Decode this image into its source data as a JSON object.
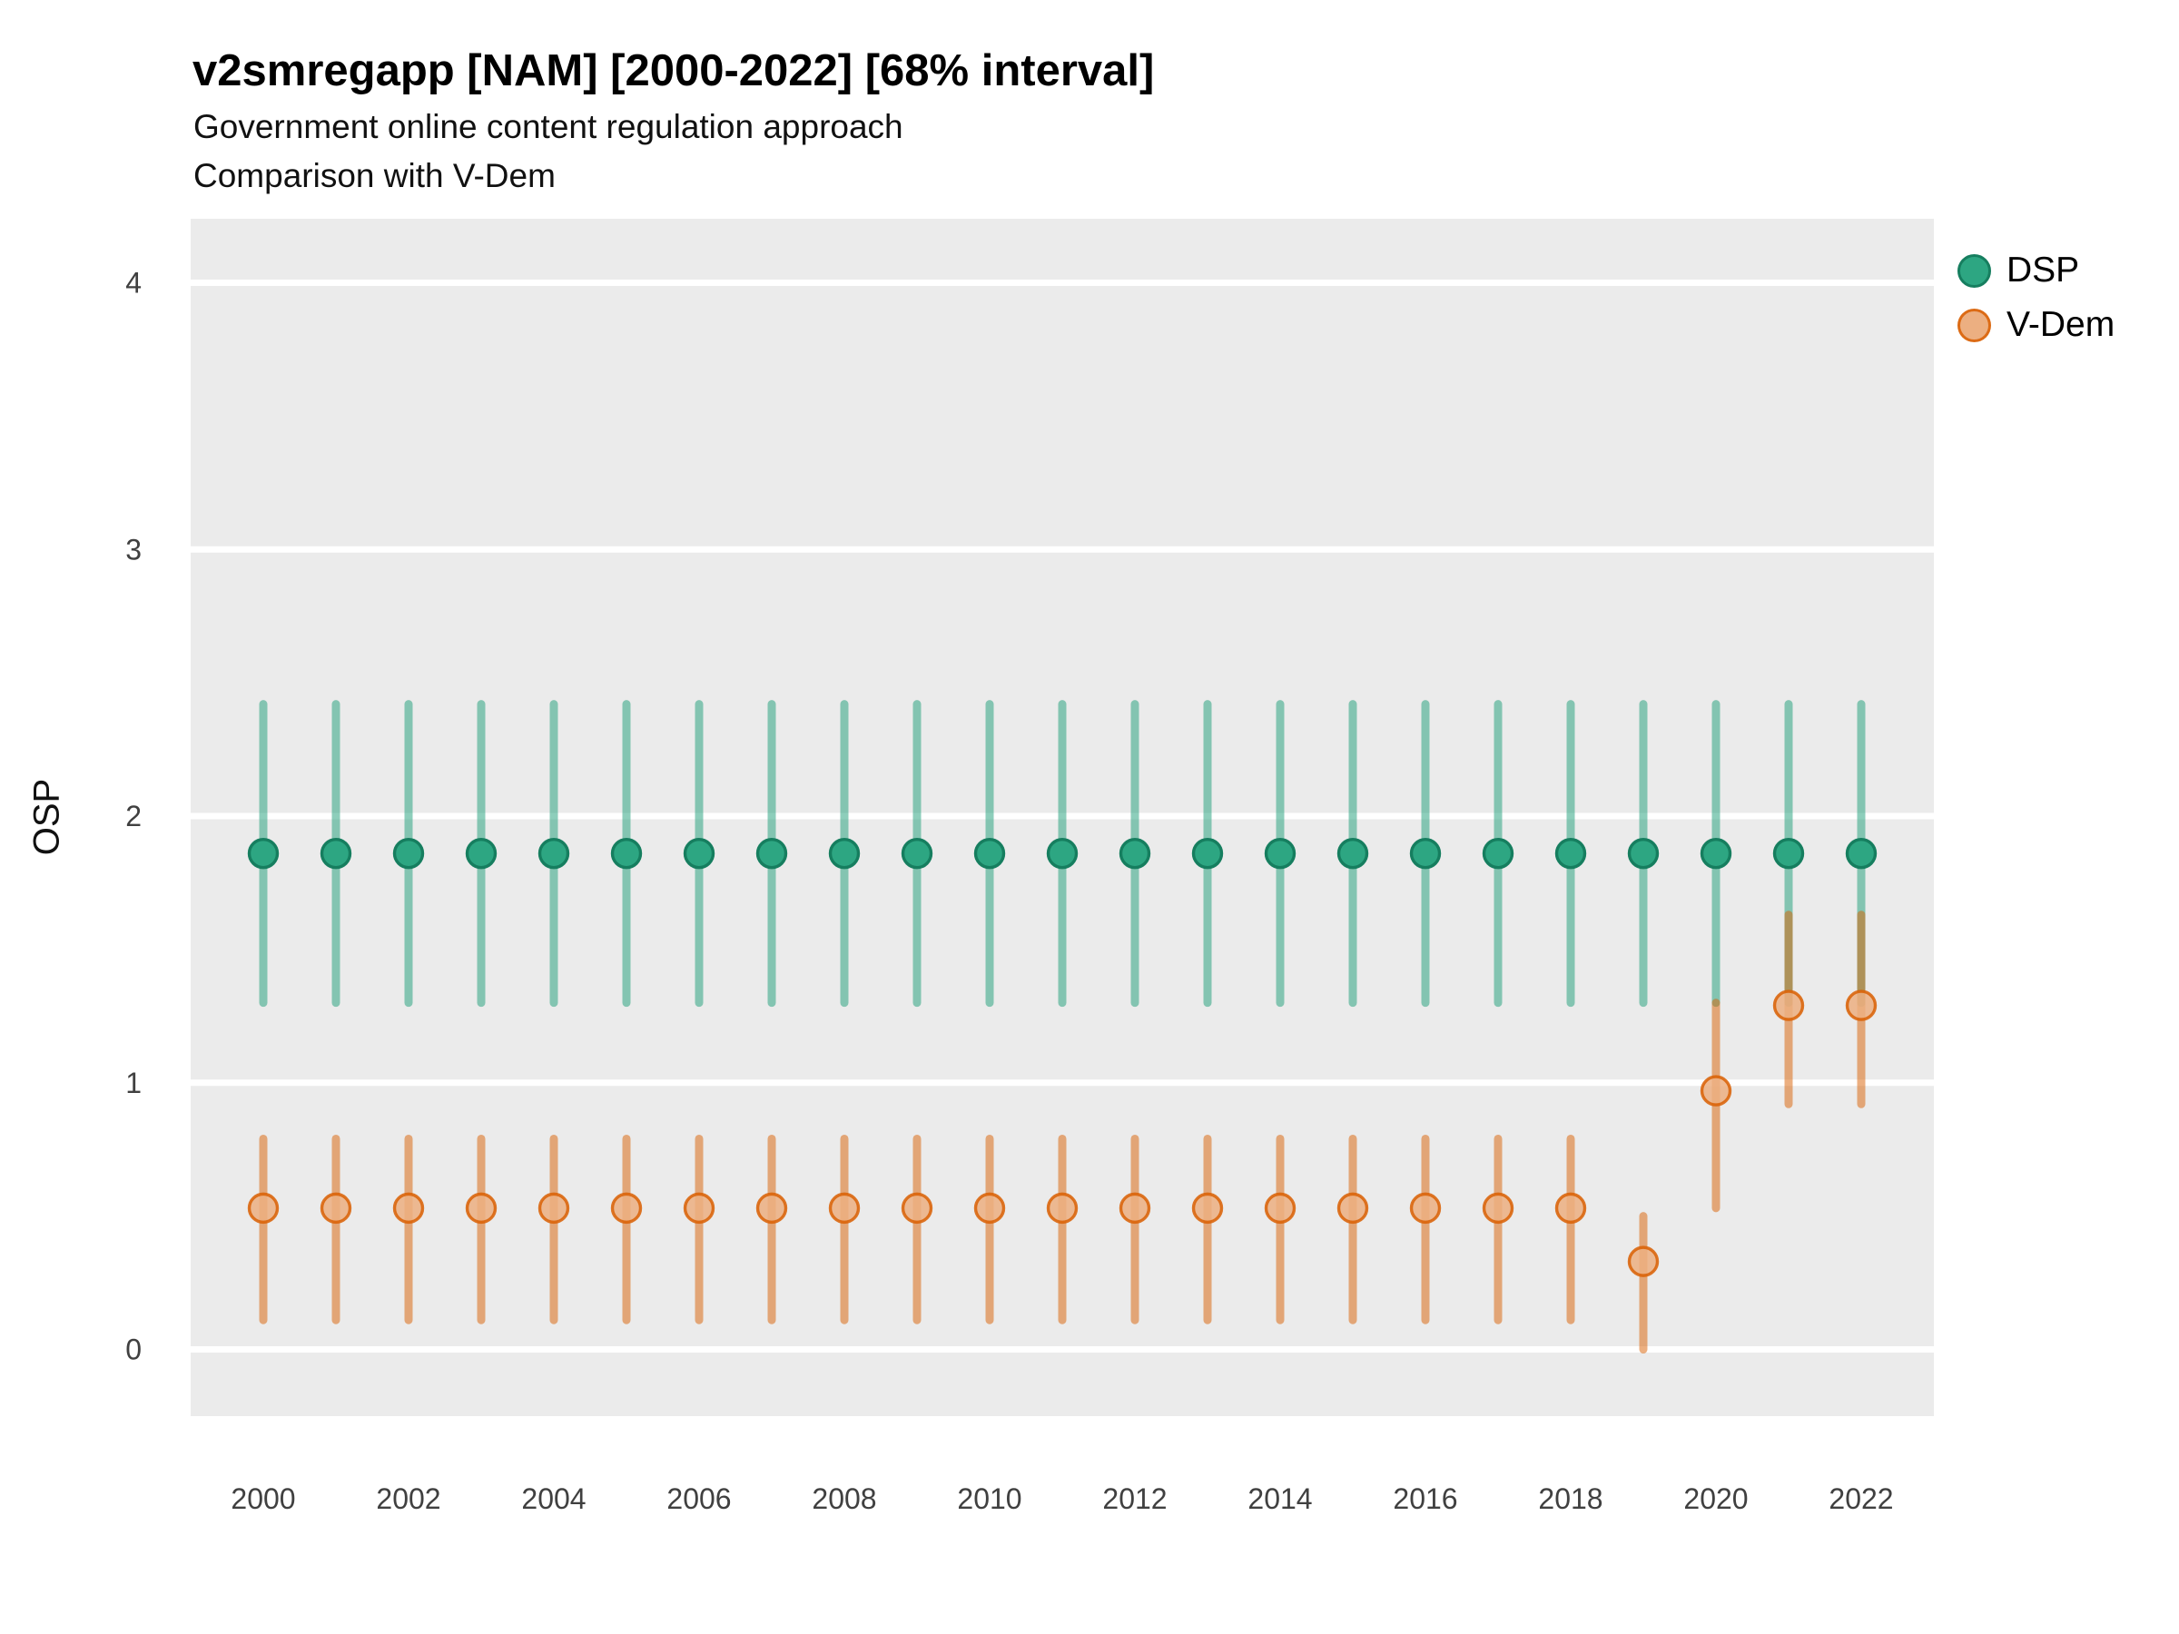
{
  "header": {
    "title": "v2smregapp [NAM] [2000-2022] [68% interval]",
    "subtitle_line1": "Government online content regulation approach",
    "subtitle_line2": "Comparison with V-Dem"
  },
  "colors": {
    "dsp_green": "#1b9e77",
    "vdem_orange": "#d95f02",
    "panel_background": "#ebebeb",
    "gridline": "#ffffff",
    "tick_text": "#404040"
  },
  "chart_data": {
    "type": "scatter",
    "variant": "point-estimates-with-error-bars",
    "title": "v2smregapp [NAM] [2000-2022] [68% interval]",
    "subtitle": "Government online content regulation approach / Comparison with V-Dem",
    "xlabel": "",
    "ylabel": "OSP",
    "interval": "68%",
    "xlim": [
      1999,
      2023
    ],
    "ylim": [
      -0.25,
      4.24
    ],
    "x_ticks": [
      2000,
      2002,
      2004,
      2006,
      2008,
      2010,
      2012,
      2014,
      2016,
      2018,
      2020,
      2022
    ],
    "y_ticks": [
      0,
      1,
      2,
      3,
      4
    ],
    "grid": "horizontal major white lines on gray panel",
    "legend_position": "right",
    "series": [
      {
        "name": "DSP",
        "color": "#1b9e77",
        "points": [
          {
            "year": 2000,
            "value": 1.86,
            "lo": 1.3,
            "hi": 2.42
          },
          {
            "year": 2001,
            "value": 1.86,
            "lo": 1.3,
            "hi": 2.42
          },
          {
            "year": 2002,
            "value": 1.86,
            "lo": 1.3,
            "hi": 2.42
          },
          {
            "year": 2003,
            "value": 1.86,
            "lo": 1.3,
            "hi": 2.42
          },
          {
            "year": 2004,
            "value": 1.86,
            "lo": 1.3,
            "hi": 2.42
          },
          {
            "year": 2005,
            "value": 1.86,
            "lo": 1.3,
            "hi": 2.42
          },
          {
            "year": 2006,
            "value": 1.86,
            "lo": 1.3,
            "hi": 2.42
          },
          {
            "year": 2007,
            "value": 1.86,
            "lo": 1.3,
            "hi": 2.42
          },
          {
            "year": 2008,
            "value": 1.86,
            "lo": 1.3,
            "hi": 2.42
          },
          {
            "year": 2009,
            "value": 1.86,
            "lo": 1.3,
            "hi": 2.42
          },
          {
            "year": 2010,
            "value": 1.86,
            "lo": 1.3,
            "hi": 2.42
          },
          {
            "year": 2011,
            "value": 1.86,
            "lo": 1.3,
            "hi": 2.42
          },
          {
            "year": 2012,
            "value": 1.86,
            "lo": 1.3,
            "hi": 2.42
          },
          {
            "year": 2013,
            "value": 1.86,
            "lo": 1.3,
            "hi": 2.42
          },
          {
            "year": 2014,
            "value": 1.86,
            "lo": 1.3,
            "hi": 2.42
          },
          {
            "year": 2015,
            "value": 1.86,
            "lo": 1.3,
            "hi": 2.42
          },
          {
            "year": 2016,
            "value": 1.86,
            "lo": 1.3,
            "hi": 2.42
          },
          {
            "year": 2017,
            "value": 1.86,
            "lo": 1.3,
            "hi": 2.42
          },
          {
            "year": 2018,
            "value": 1.86,
            "lo": 1.3,
            "hi": 2.42
          },
          {
            "year": 2019,
            "value": 1.86,
            "lo": 1.3,
            "hi": 2.42
          },
          {
            "year": 2020,
            "value": 1.86,
            "lo": 1.3,
            "hi": 2.42
          },
          {
            "year": 2021,
            "value": 1.86,
            "lo": 1.3,
            "hi": 2.42
          },
          {
            "year": 2022,
            "value": 1.86,
            "lo": 1.3,
            "hi": 2.42
          }
        ]
      },
      {
        "name": "V-Dem",
        "color": "#d95f02",
        "points": [
          {
            "year": 2000,
            "value": 0.53,
            "lo": 0.11,
            "hi": 0.79
          },
          {
            "year": 2001,
            "value": 0.53,
            "lo": 0.11,
            "hi": 0.79
          },
          {
            "year": 2002,
            "value": 0.53,
            "lo": 0.11,
            "hi": 0.79
          },
          {
            "year": 2003,
            "value": 0.53,
            "lo": 0.11,
            "hi": 0.79
          },
          {
            "year": 2004,
            "value": 0.53,
            "lo": 0.11,
            "hi": 0.79
          },
          {
            "year": 2005,
            "value": 0.53,
            "lo": 0.11,
            "hi": 0.79
          },
          {
            "year": 2006,
            "value": 0.53,
            "lo": 0.11,
            "hi": 0.79
          },
          {
            "year": 2007,
            "value": 0.53,
            "lo": 0.11,
            "hi": 0.79
          },
          {
            "year": 2008,
            "value": 0.53,
            "lo": 0.11,
            "hi": 0.79
          },
          {
            "year": 2009,
            "value": 0.53,
            "lo": 0.11,
            "hi": 0.79
          },
          {
            "year": 2010,
            "value": 0.53,
            "lo": 0.11,
            "hi": 0.79
          },
          {
            "year": 2011,
            "value": 0.53,
            "lo": 0.11,
            "hi": 0.79
          },
          {
            "year": 2012,
            "value": 0.53,
            "lo": 0.11,
            "hi": 0.79
          },
          {
            "year": 2013,
            "value": 0.53,
            "lo": 0.11,
            "hi": 0.79
          },
          {
            "year": 2014,
            "value": 0.53,
            "lo": 0.11,
            "hi": 0.79
          },
          {
            "year": 2015,
            "value": 0.53,
            "lo": 0.11,
            "hi": 0.79
          },
          {
            "year": 2016,
            "value": 0.53,
            "lo": 0.11,
            "hi": 0.79
          },
          {
            "year": 2017,
            "value": 0.53,
            "lo": 0.11,
            "hi": 0.79
          },
          {
            "year": 2018,
            "value": 0.53,
            "lo": 0.11,
            "hi": 0.79
          },
          {
            "year": 2019,
            "value": 0.33,
            "lo": 0.0,
            "hi": 0.5
          },
          {
            "year": 2020,
            "value": 0.97,
            "lo": 0.53,
            "hi": 1.3
          },
          {
            "year": 2021,
            "value": 1.29,
            "lo": 0.92,
            "hi": 1.63
          },
          {
            "year": 2022,
            "value": 1.29,
            "lo": 0.92,
            "hi": 1.63
          }
        ]
      }
    ]
  }
}
